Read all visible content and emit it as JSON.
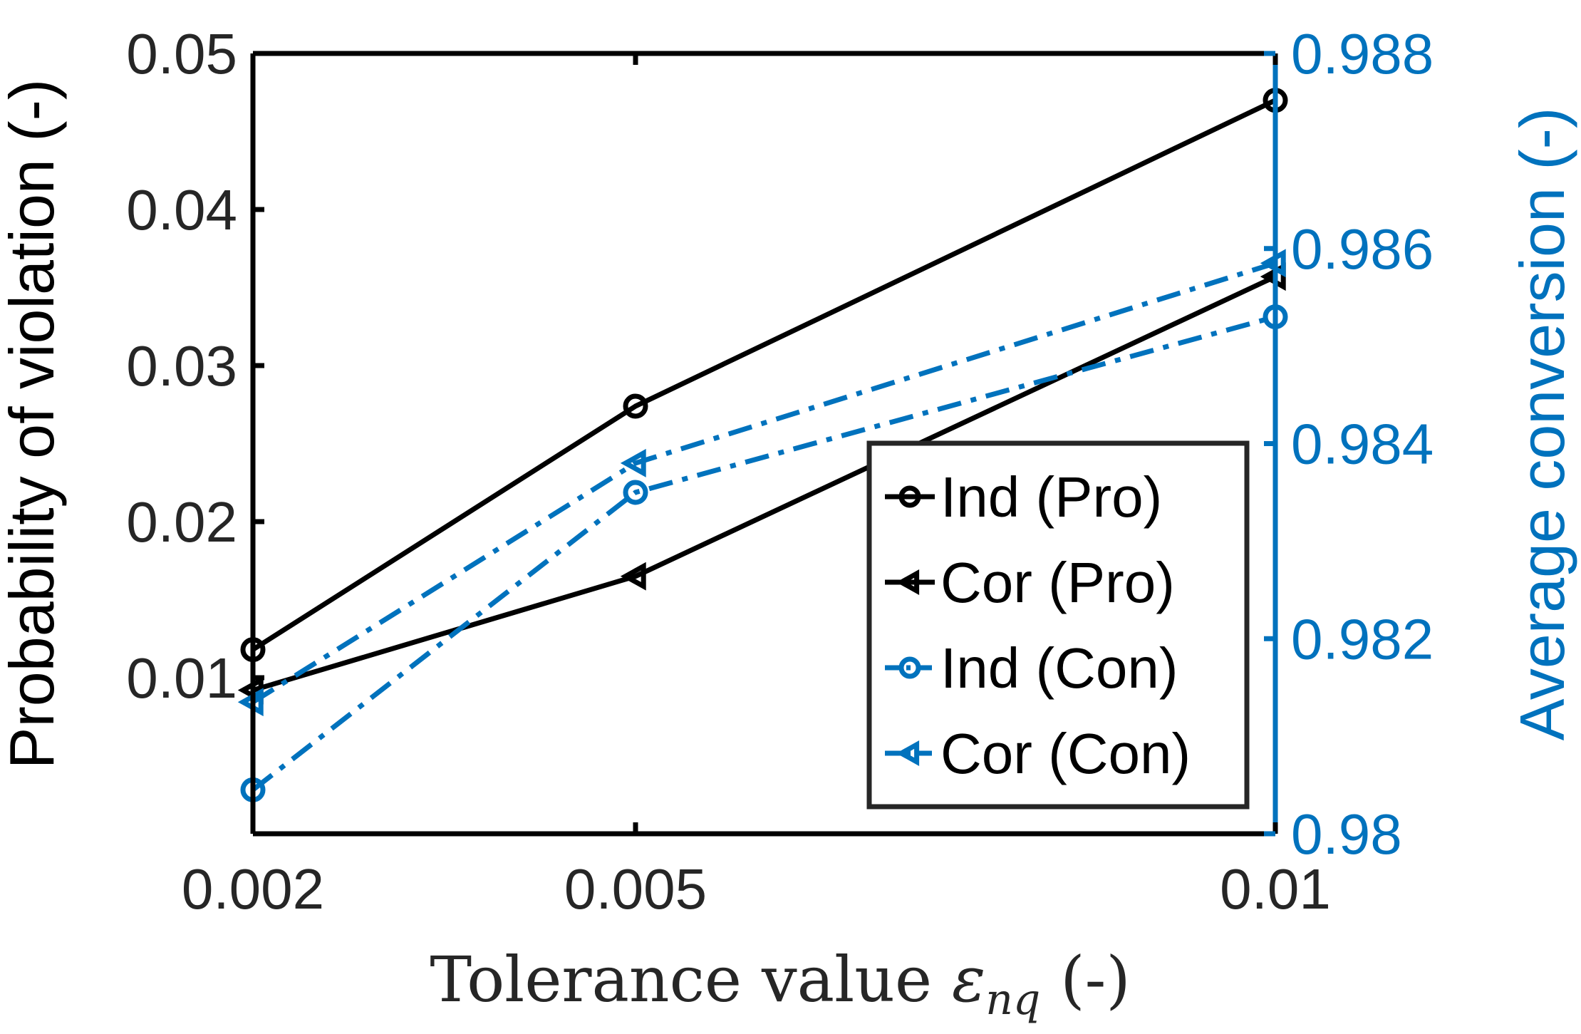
{
  "chart_data": {
    "type": "line",
    "x": [
      0.002,
      0.005,
      0.01
    ],
    "x_tick_labels": [
      "0.002",
      "0.005",
      "0.01"
    ],
    "xlabel": {
      "main": "Tolerance value ",
      "symbol": "ε",
      "subscript": "nq",
      "suffix": " (-)"
    },
    "y_left": {
      "label": "Probability of violation (-)",
      "lim": [
        0.0,
        0.05
      ],
      "ticks": [
        0.01,
        0.02,
        0.03,
        0.04,
        0.05
      ],
      "tick_labels": [
        "0.01",
        "0.02",
        "0.03",
        "0.04",
        "0.05"
      ],
      "color": "#000000"
    },
    "y_right": {
      "label": "Average conversion (-)",
      "lim": [
        0.98,
        0.988
      ],
      "ticks": [
        0.98,
        0.982,
        0.984,
        0.986,
        0.988
      ],
      "tick_labels": [
        "0.98",
        "0.982",
        "0.984",
        "0.986",
        "0.988"
      ],
      "color": "#0072BD"
    },
    "series": [
      {
        "name": "Ind (Pro)",
        "axis": "left",
        "values": [
          0.0118,
          0.0274,
          0.047
        ],
        "color": "#000000",
        "marker": "circle",
        "style": "solid"
      },
      {
        "name": "Cor (Pro)",
        "axis": "left",
        "values": [
          0.0092,
          0.0165,
          0.0357
        ],
        "color": "#000000",
        "marker": "triangle-left",
        "style": "solid"
      },
      {
        "name": "Ind (Con)",
        "axis": "right",
        "values": [
          0.98045,
          0.9835,
          0.9853
        ],
        "color": "#0072BD",
        "marker": "circle",
        "style": "dashdot"
      },
      {
        "name": "Cor (Con)",
        "axis": "right",
        "values": [
          0.98135,
          0.9838,
          0.98585
        ],
        "color": "#0072BD",
        "marker": "triangle-left",
        "style": "dashdot"
      }
    ],
    "legend": {
      "location": "bottom-right-inside"
    },
    "grid": false
  }
}
